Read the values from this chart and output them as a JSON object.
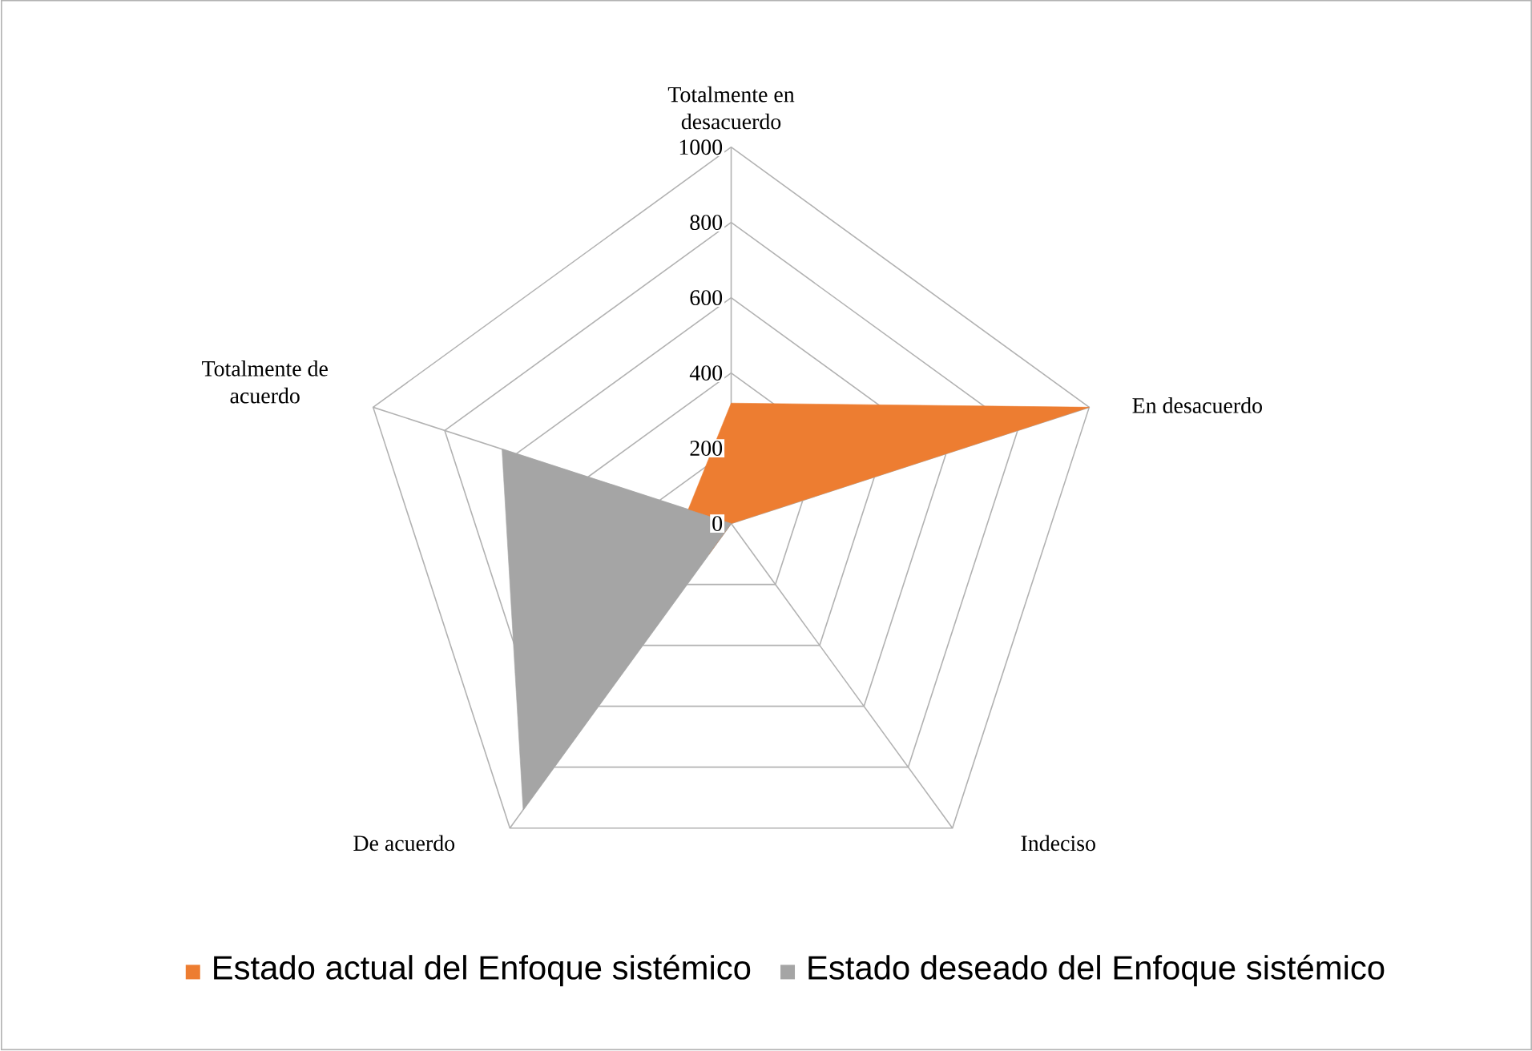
{
  "chart_data": {
    "type": "radar",
    "categories": [
      "Totalmente en desacuerdo",
      "En desacuerdo",
      "Indeciso",
      "De acuerdo",
      "Totalmente de acuerdo"
    ],
    "series": [
      {
        "name": "Estado actual del Enfoque sistémico",
        "color": "#ed7d31",
        "values": [
          320,
          1000,
          0,
          100,
          120
        ]
      },
      {
        "name": "Estado deseado del Enfoque sistémico",
        "color": "#a5a5a5",
        "values": [
          0,
          0,
          0,
          940,
          640
        ]
      }
    ],
    "ylim": [
      0,
      1000
    ],
    "yticks": [
      0,
      200,
      400,
      600,
      800,
      1000
    ],
    "grid": true,
    "legend": "bottom"
  }
}
